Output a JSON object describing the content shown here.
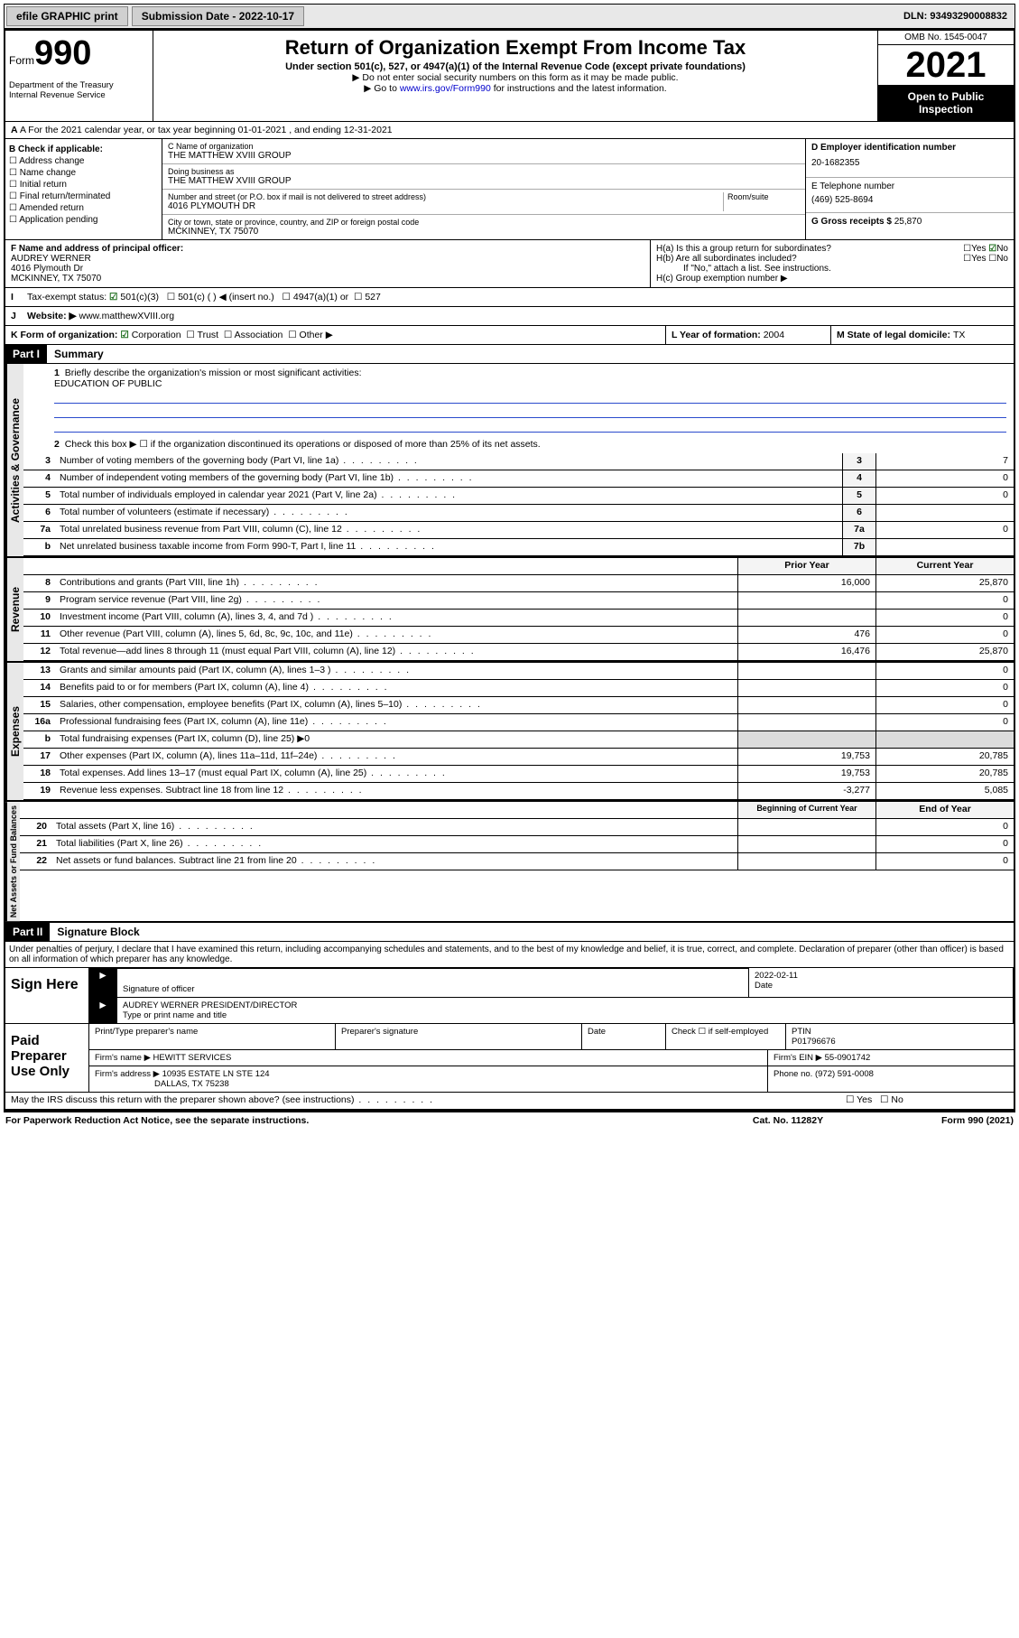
{
  "topbar": {
    "efile": "efile GRAPHIC print",
    "subdate_lbl": "Submission Date - ",
    "subdate": "2022-10-17",
    "dln": "DLN: 93493290008832"
  },
  "header": {
    "form_word": "Form",
    "form_num": "990",
    "title": "Return of Organization Exempt From Income Tax",
    "sub": "Under section 501(c), 527, or 4947(a)(1) of the Internal Revenue Code (except private foundations)",
    "note1": "▶ Do not enter social security numbers on this form as it may be made public.",
    "note2_pre": "▶ Go to ",
    "note2_link": "www.irs.gov/Form990",
    "note2_post": " for instructions and the latest information.",
    "dept": "Department of the Treasury\nInternal Revenue Service",
    "omb": "OMB No. 1545-0047",
    "year": "2021",
    "open": "Open to Public Inspection"
  },
  "rowA": "A For the 2021 calendar year, or tax year beginning 01-01-2021   , and ending 12-31-2021",
  "colB": {
    "hdr": "B Check if applicable:",
    "o1": "Address change",
    "o2": "Name change",
    "o3": "Initial return",
    "o4": "Final return/terminated",
    "o5": "Amended return",
    "o6": "Application pending"
  },
  "colC": {
    "name_lbl": "C Name of organization",
    "name": "THE MATTHEW XVIII GROUP",
    "dba_lbl": "Doing business as",
    "dba": "THE MATTHEW XVIII GROUP",
    "addr_lbl": "Number and street (or P.O. box if mail is not delivered to street address)",
    "room_lbl": "Room/suite",
    "addr": "4016 PLYMOUTH DR",
    "city_lbl": "City or town, state or province, country, and ZIP or foreign postal code",
    "city": "MCKINNEY, TX  75070"
  },
  "colD": {
    "ein_lbl": "D Employer identification number",
    "ein": "20-1682355",
    "tel_lbl": "E Telephone number",
    "tel": "(469) 525-8694",
    "gross_lbl": "G Gross receipts $ ",
    "gross": "25,870"
  },
  "rowF": {
    "lbl": "F  Name and address of principal officer:",
    "name": "AUDREY WERNER",
    "addr1": "4016 Plymouth Dr",
    "addr2": "MCKINNEY, TX  75070"
  },
  "rowH": {
    "ha": "H(a)  Is this a group return for subordinates?",
    "hb": "H(b)  Are all subordinates included?",
    "hb_note": "If \"No,\" attach a list. See instructions.",
    "hc": "H(c)  Group exemption number ▶",
    "yes": "Yes",
    "no": "No"
  },
  "rowI": {
    "lbl": "Tax-exempt status:",
    "o1": "501(c)(3)",
    "o2": "501(c) (  ) ◀ (insert no.)",
    "o3": "4947(a)(1) or",
    "o4": "527"
  },
  "rowJ": {
    "lbl": "Website: ▶",
    "val": "www.matthewXVIII.org"
  },
  "rowK": {
    "lbl": "K Form of organization:",
    "o1": "Corporation",
    "o2": "Trust",
    "o3": "Association",
    "o4": "Other ▶"
  },
  "rowL": {
    "lbl": "L Year of formation: ",
    "val": "2004"
  },
  "rowM": {
    "lbl": "M State of legal domicile: ",
    "val": "TX"
  },
  "part1": {
    "hdr": "Part I",
    "title": "Summary",
    "l1": "Briefly describe the organization's mission or most significant activities:",
    "mission": "EDUCATION OF PUBLIC",
    "l2": "Check this box ▶ ☐  if the organization discontinued its operations or disposed of more than 25% of its net assets.",
    "vlab_gov": "Activities & Governance",
    "vlab_rev": "Revenue",
    "vlab_exp": "Expenses",
    "vlab_net": "Net Assets or Fund Balances",
    "prior": "Prior Year",
    "current": "Current Year",
    "beg": "Beginning of Current Year",
    "end": "End of Year"
  },
  "lines_gov": [
    {
      "n": "3",
      "t": "Number of voting members of the governing body (Part VI, line 1a)",
      "box": "3",
      "v": "7"
    },
    {
      "n": "4",
      "t": "Number of independent voting members of the governing body (Part VI, line 1b)",
      "box": "4",
      "v": "0"
    },
    {
      "n": "5",
      "t": "Total number of individuals employed in calendar year 2021 (Part V, line 2a)",
      "box": "5",
      "v": "0"
    },
    {
      "n": "6",
      "t": "Total number of volunteers (estimate if necessary)",
      "box": "6",
      "v": ""
    },
    {
      "n": "7a",
      "t": "Total unrelated business revenue from Part VIII, column (C), line 12",
      "box": "7a",
      "v": "0"
    },
    {
      "n": "b",
      "t": "Net unrelated business taxable income from Form 990-T, Part I, line 11",
      "box": "7b",
      "v": ""
    }
  ],
  "lines_rev": [
    {
      "n": "8",
      "t": "Contributions and grants (Part VIII, line 1h)",
      "p": "16,000",
      "c": "25,870"
    },
    {
      "n": "9",
      "t": "Program service revenue (Part VIII, line 2g)",
      "p": "",
      "c": "0"
    },
    {
      "n": "10",
      "t": "Investment income (Part VIII, column (A), lines 3, 4, and 7d )",
      "p": "",
      "c": "0"
    },
    {
      "n": "11",
      "t": "Other revenue (Part VIII, column (A), lines 5, 6d, 8c, 9c, 10c, and 11e)",
      "p": "476",
      "c": "0"
    },
    {
      "n": "12",
      "t": "Total revenue—add lines 8 through 11 (must equal Part VIII, column (A), line 12)",
      "p": "16,476",
      "c": "25,870"
    }
  ],
  "lines_exp": [
    {
      "n": "13",
      "t": "Grants and similar amounts paid (Part IX, column (A), lines 1–3 )",
      "p": "",
      "c": "0"
    },
    {
      "n": "14",
      "t": "Benefits paid to or for members (Part IX, column (A), line 4)",
      "p": "",
      "c": "0"
    },
    {
      "n": "15",
      "t": "Salaries, other compensation, employee benefits (Part IX, column (A), lines 5–10)",
      "p": "",
      "c": "0"
    },
    {
      "n": "16a",
      "t": "Professional fundraising fees (Part IX, column (A), line 11e)",
      "p": "",
      "c": "0"
    },
    {
      "n": "b",
      "t": "Total fundraising expenses (Part IX, column (D), line 25) ▶0",
      "grey": true
    },
    {
      "n": "17",
      "t": "Other expenses (Part IX, column (A), lines 11a–11d, 11f–24e)",
      "p": "19,753",
      "c": "20,785"
    },
    {
      "n": "18",
      "t": "Total expenses. Add lines 13–17 (must equal Part IX, column (A), line 25)",
      "p": "19,753",
      "c": "20,785"
    },
    {
      "n": "19",
      "t": "Revenue less expenses. Subtract line 18 from line 12",
      "p": "-3,277",
      "c": "5,085"
    }
  ],
  "lines_net": [
    {
      "n": "20",
      "t": "Total assets (Part X, line 16)",
      "p": "",
      "c": "0"
    },
    {
      "n": "21",
      "t": "Total liabilities (Part X, line 26)",
      "p": "",
      "c": "0"
    },
    {
      "n": "22",
      "t": "Net assets or fund balances. Subtract line 21 from line 20",
      "p": "",
      "c": "0"
    }
  ],
  "part2": {
    "hdr": "Part II",
    "title": "Signature Block",
    "penalties": "Under penalties of perjury, I declare that I have examined this return, including accompanying schedules and statements, and to the best of my knowledge and belief, it is true, correct, and complete. Declaration of preparer (other than officer) is based on all information of which preparer has any knowledge."
  },
  "sign": {
    "here": "Sign Here",
    "sig_lbl": "Signature of officer",
    "date_lbl": "Date",
    "date": "2022-02-11",
    "name": "AUDREY WERNER  PRESIDENT/DIRECTOR",
    "name_lbl": "Type or print name and title"
  },
  "paid": {
    "hdr": "Paid Preparer Use Only",
    "c1": "Print/Type preparer's name",
    "c2": "Preparer's signature",
    "c3": "Date",
    "c4a": "Check ☐ if self-employed",
    "c4b_lbl": "PTIN",
    "c4b": "P01796676",
    "firm_lbl": "Firm's name    ▶ ",
    "firm": "HEWITT SERVICES",
    "ein_lbl": "Firm's EIN ▶ ",
    "ein": "55-0901742",
    "addr_lbl": "Firm's address ▶ ",
    "addr1": "10935 ESTATE LN STE 124",
    "addr2": "DALLAS, TX  75238",
    "phone_lbl": "Phone no. ",
    "phone": "(972) 591-0008"
  },
  "discuss": "May the IRS discuss this return with the preparer shown above? (see instructions)",
  "foot": {
    "l": "For Paperwork Reduction Act Notice, see the separate instructions.",
    "m": "Cat. No. 11282Y",
    "r": "Form 990 (2021)"
  }
}
